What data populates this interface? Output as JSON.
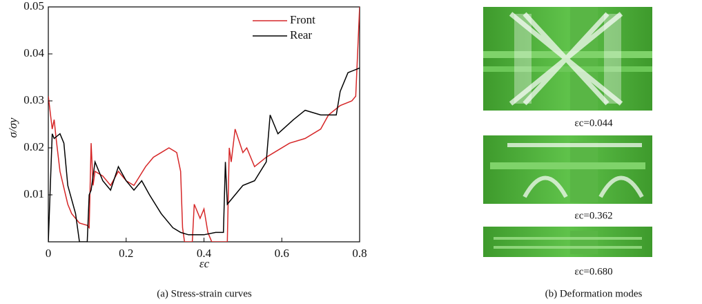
{
  "chart_data": {
    "type": "line",
    "caption": "(a) Stress-strain curves",
    "xlabel": "εc",
    "ylabel": "σ/σy",
    "xlim": [
      0,
      0.8
    ],
    "ylim": [
      0,
      0.05
    ],
    "xticks": [
      0,
      0.2,
      0.4,
      0.6,
      0.8
    ],
    "yticks": [
      0.01,
      0.02,
      0.03,
      0.04,
      0.05
    ],
    "legend": "upper right",
    "series": [
      {
        "name": "Front",
        "color": "#d62728",
        "x": [
          0,
          0.01,
          0.015,
          0.02,
          0.03,
          0.05,
          0.06,
          0.08,
          0.1,
          0.105,
          0.11,
          0.115,
          0.12,
          0.14,
          0.16,
          0.18,
          0.2,
          0.22,
          0.25,
          0.27,
          0.29,
          0.31,
          0.33,
          0.34,
          0.345,
          0.35,
          0.37,
          0.375,
          0.39,
          0.4,
          0.41,
          0.42,
          0.46,
          0.465,
          0.47,
          0.48,
          0.5,
          0.51,
          0.53,
          0.56,
          0.58,
          0.62,
          0.66,
          0.7,
          0.72,
          0.75,
          0.78,
          0.79,
          0.8
        ],
        "values": [
          0.031,
          0.024,
          0.026,
          0.022,
          0.015,
          0.008,
          0.006,
          0.004,
          0.0035,
          0.003,
          0.021,
          0.012,
          0.015,
          0.014,
          0.012,
          0.015,
          0.013,
          0.012,
          0.016,
          0.018,
          0.019,
          0.02,
          0.019,
          0.015,
          0.003,
          0,
          0,
          0.008,
          0.005,
          0.007,
          0.002,
          0,
          0,
          0.02,
          0.017,
          0.024,
          0.019,
          0.02,
          0.016,
          0.018,
          0.019,
          0.021,
          0.022,
          0.024,
          0.027,
          0.029,
          0.03,
          0.031,
          0.05
        ]
      },
      {
        "name": "Rear",
        "color": "#000000",
        "x": [
          0,
          0.01,
          0.015,
          0.03,
          0.04,
          0.05,
          0.07,
          0.08,
          0.1,
          0.105,
          0.11,
          0.12,
          0.14,
          0.16,
          0.18,
          0.2,
          0.22,
          0.24,
          0.26,
          0.29,
          0.32,
          0.34,
          0.36,
          0.4,
          0.43,
          0.45,
          0.455,
          0.46,
          0.48,
          0.5,
          0.53,
          0.56,
          0.57,
          0.59,
          0.63,
          0.66,
          0.7,
          0.74,
          0.75,
          0.77,
          0.8
        ],
        "values": [
          0,
          0.023,
          0.022,
          0.023,
          0.021,
          0.012,
          0.006,
          0,
          0,
          0.01,
          0.011,
          0.017,
          0.013,
          0.011,
          0.016,
          0.013,
          0.011,
          0.013,
          0.01,
          0.006,
          0.003,
          0.002,
          0.0015,
          0.0015,
          0.002,
          0.002,
          0.017,
          0.008,
          0.01,
          0.012,
          0.013,
          0.017,
          0.027,
          0.023,
          0.026,
          0.028,
          0.027,
          0.027,
          0.032,
          0.036,
          0.037
        ]
      }
    ]
  },
  "figure_b": {
    "caption": "(b) Deformation modes",
    "labels": [
      "εc=0.044",
      "εc=0.362",
      "εc=0.680"
    ]
  }
}
